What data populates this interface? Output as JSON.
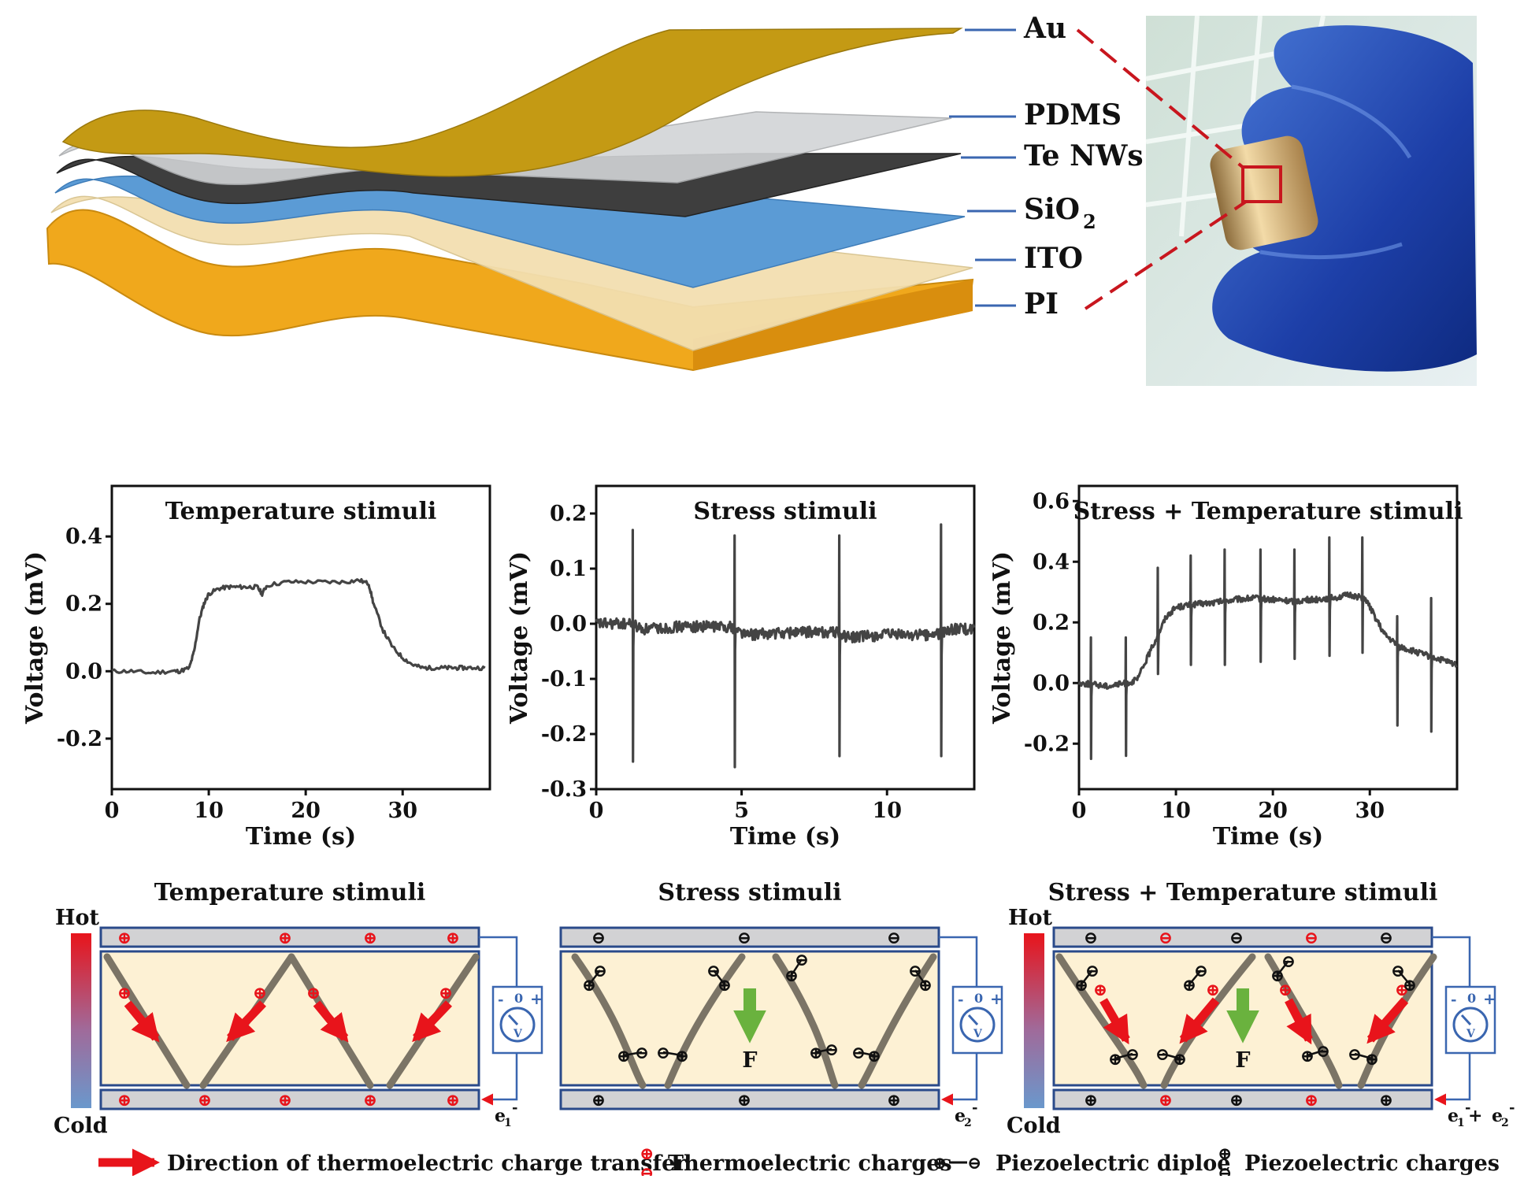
{
  "layer_stack": {
    "labels": [
      "Au",
      "PDMS",
      "Te NWs",
      "SiO2",
      "ITO",
      "PI"
    ],
    "sio2_base": "SiO",
    "sio2_sub": "2",
    "colors": {
      "au": "#c49a14",
      "pdms": "#d2d4d6",
      "te": "#3e3e3e",
      "sio2": "#5b9bd5",
      "ito": "#f3dfb0",
      "pi": "#f0a81c"
    }
  },
  "charts": [
    {
      "title": "Temperature stimuli",
      "xlabel": "Time (s)",
      "ylabel": "Voltage (mV)"
    },
    {
      "title": "Stress stimuli",
      "xlabel": "Time (s)",
      "ylabel": "Voltage (mV)"
    },
    {
      "title": "Stress + Temperature stimuli",
      "xlabel": "Time (s)",
      "ylabel": "Voltage (mV)"
    }
  ],
  "chart_data": [
    {
      "type": "line",
      "title": "Temperature stimuli",
      "xlabel": "Time (s)",
      "ylabel": "Voltage (mV)",
      "xlim": [
        0,
        39
      ],
      "ylim": [
        -0.35,
        0.55
      ],
      "xticks": [
        0,
        10,
        20,
        30
      ],
      "yticks": [
        -0.2,
        0.0,
        0.2,
        0.4
      ],
      "xticklabels": [
        "0",
        "10",
        "20",
        "30"
      ],
      "yticklabels": [
        "-0.2",
        "0.0",
        "0.2",
        "0.4"
      ],
      "x": [
        0,
        2,
        4,
        6,
        7,
        8,
        8.5,
        9,
        9.5,
        10,
        11,
        12,
        13,
        14,
        15,
        15.5,
        16,
        18,
        20,
        22,
        24,
        25.5,
        26.5,
        27,
        28,
        29,
        30,
        31,
        32,
        33,
        34,
        35,
        36,
        37,
        38.5
      ],
      "y": [
        0.0,
        0.0,
        -0.005,
        0.0,
        0.0,
        0.01,
        0.06,
        0.15,
        0.2,
        0.23,
        0.245,
        0.25,
        0.25,
        0.25,
        0.25,
        0.23,
        0.255,
        0.265,
        0.265,
        0.265,
        0.265,
        0.27,
        0.26,
        0.2,
        0.12,
        0.07,
        0.04,
        0.02,
        0.01,
        0.01,
        0.01,
        0.01,
        0.01,
        0.01,
        0.01
      ]
    },
    {
      "type": "line",
      "title": "Stress stimuli",
      "xlabel": "Time (s)",
      "ylabel": "Voltage (mV)",
      "xlim": [
        0,
        13
      ],
      "ylim": [
        -0.3,
        0.25
      ],
      "xticks": [
        0,
        5,
        10
      ],
      "yticks": [
        -0.3,
        -0.2,
        -0.1,
        0.0,
        0.1,
        0.2
      ],
      "xticklabels": [
        "0",
        "5",
        "10"
      ],
      "yticklabels": [
        "-0.3",
        "-0.2",
        "-0.1",
        "0.0",
        "0.1",
        "0.2"
      ],
      "baseline": [
        [
          0,
          0.0
        ],
        [
          1.2,
          0.0
        ],
        [
          1.6,
          -0.01
        ],
        [
          3,
          -0.005
        ],
        [
          4.6,
          -0.005
        ],
        [
          5.2,
          -0.02
        ],
        [
          7,
          -0.015
        ],
        [
          8.2,
          -0.015
        ],
        [
          8.7,
          -0.025
        ],
        [
          10,
          -0.02
        ],
        [
          11.7,
          -0.02
        ],
        [
          12.2,
          -0.01
        ],
        [
          13,
          -0.01
        ]
      ],
      "spikes": [
        {
          "t": 1.25,
          "min": -0.25,
          "max": 0.17
        },
        {
          "t": 4.75,
          "min": -0.26,
          "max": 0.16
        },
        {
          "t": 8.35,
          "min": -0.24,
          "max": 0.16
        },
        {
          "t": 11.85,
          "min": -0.24,
          "max": 0.18
        }
      ]
    },
    {
      "type": "line",
      "title": "Stress + Temperature stimuli",
      "xlabel": "Time (s)",
      "ylabel": "Voltage (mV)",
      "xlim": [
        0,
        39
      ],
      "ylim": [
        -0.35,
        0.65
      ],
      "xticks": [
        0,
        10,
        20,
        30
      ],
      "yticks": [
        -0.2,
        0.0,
        0.2,
        0.4,
        0.6
      ],
      "xticklabels": [
        "0",
        "10",
        "20",
        "30"
      ],
      "yticklabels": [
        "-0.2",
        "0.0",
        "0.2",
        "0.4",
        "0.6"
      ],
      "baseline": [
        [
          0,
          0.0
        ],
        [
          3,
          -0.01
        ],
        [
          5,
          0.0
        ],
        [
          6,
          0.01
        ],
        [
          7,
          0.08
        ],
        [
          8,
          0.15
        ],
        [
          9,
          0.22
        ],
        [
          10,
          0.25
        ],
        [
          12,
          0.26
        ],
        [
          14,
          0.265
        ],
        [
          16,
          0.275
        ],
        [
          18,
          0.28
        ],
        [
          20,
          0.275
        ],
        [
          22,
          0.27
        ],
        [
          24,
          0.275
        ],
        [
          26,
          0.28
        ],
        [
          28,
          0.29
        ],
        [
          29.5,
          0.28
        ],
        [
          30.5,
          0.22
        ],
        [
          31.5,
          0.16
        ],
        [
          33,
          0.12
        ],
        [
          35,
          0.1
        ],
        [
          37,
          0.08
        ],
        [
          39,
          0.06
        ]
      ],
      "spikes": [
        {
          "t": 1.2,
          "min": -0.25,
          "max": 0.15
        },
        {
          "t": 4.8,
          "min": -0.24,
          "max": 0.15
        },
        {
          "t": 8.1,
          "min": 0.03,
          "max": 0.38
        },
        {
          "t": 11.5,
          "min": 0.06,
          "max": 0.42
        },
        {
          "t": 15.0,
          "min": 0.06,
          "max": 0.44
        },
        {
          "t": 18.7,
          "min": 0.07,
          "max": 0.44
        },
        {
          "t": 22.2,
          "min": 0.08,
          "max": 0.44
        },
        {
          "t": 25.8,
          "min": 0.09,
          "max": 0.48
        },
        {
          "t": 29.2,
          "min": 0.1,
          "max": 0.48
        },
        {
          "t": 32.8,
          "min": -0.14,
          "max": 0.22
        },
        {
          "t": 36.3,
          "min": -0.16,
          "max": 0.28
        }
      ]
    }
  ],
  "schematics": [
    {
      "title": "Temperature stimuli",
      "hot_label": "Hot",
      "cold_label": "Cold",
      "electron_base": "e",
      "electron_sub": "1",
      "electron_sup": "-",
      "force_label": ""
    },
    {
      "title": "Stress stimuli",
      "hot_label": "",
      "cold_label": "",
      "electron_base": "e",
      "electron_sub": "2",
      "electron_sup": "-",
      "force_label": "F"
    },
    {
      "title": "Stress + Temperature stimuli",
      "hot_label": "Hot",
      "cold_label": "Cold",
      "electron_base": "e",
      "electron_sub": "1",
      "electron_sup": "-",
      "electron_plus": " + ",
      "electron_base2": "e",
      "electron_sub2": "2",
      "electron_sup2": "-",
      "force_label": "F"
    }
  ],
  "meter": {
    "minus": "-",
    "zero": "0",
    "plus": "+",
    "unit": "V"
  },
  "charge_symbols": {
    "plus": "⊕",
    "minus": "⊖"
  },
  "legend": {
    "thermo_direction": "Direction of thermoelectric charge transfer",
    "thermo_charges": "Thermoelectric charges",
    "piezo_dipole": "Piezoelectric diploe",
    "piezo_charges": "Piezoelectric charges"
  },
  "colors": {
    "red": "#e8141b",
    "green": "#6ab23e",
    "wire": "#3a66b0",
    "electrode": "#d2d2d4",
    "fill": "#fdf1d4",
    "nanowire": "#7b7466",
    "trace": "#444444"
  }
}
